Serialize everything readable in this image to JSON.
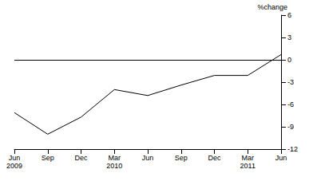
{
  "chart_data": {
    "type": "line",
    "categories": [
      "Jun 2009",
      "Sep",
      "Dec",
      "Mar 2010",
      "Jun",
      "Sep",
      "Dec",
      "Mar 2011",
      "Jun"
    ],
    "values": [
      -7.1,
      -10.0,
      -7.7,
      -4.0,
      -4.8,
      -3.4,
      -2.1,
      -2.1,
      0.7
    ],
    "color": "#000000",
    "ylabel": "%change",
    "ylim": [
      -12,
      6
    ],
    "yticks": [
      -12,
      -9,
      -6,
      -3,
      0,
      3,
      6
    ],
    "grid": false
  }
}
